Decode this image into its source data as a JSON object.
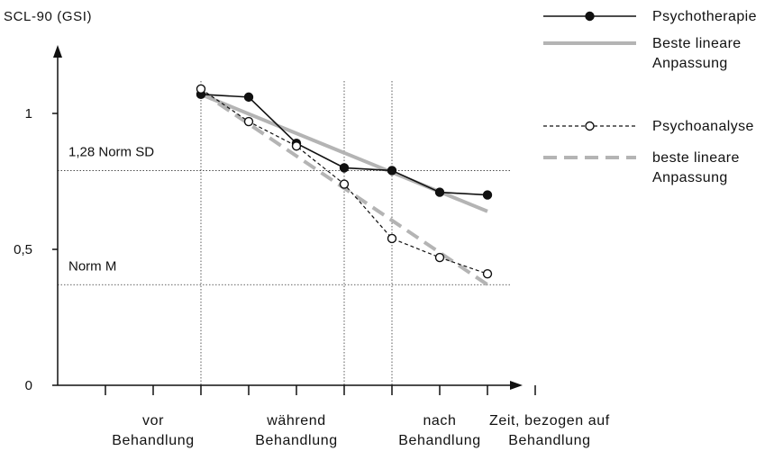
{
  "chart_data": {
    "type": "line",
    "ylabel": "SCL-90 (GSI)",
    "yticks": [
      {
        "value": 0,
        "label": "0"
      },
      {
        "value": 0.5,
        "label": "0,5"
      },
      {
        "value": 1,
        "label": "1"
      }
    ],
    "ylim": [
      0,
      1.26
    ],
    "x_positions": [
      1,
      2,
      3,
      4,
      5,
      6,
      7,
      8,
      9,
      10
    ],
    "x_phase_labels": [
      {
        "line1": "vor",
        "line2": "Behandlung",
        "x": 2
      },
      {
        "line1": "während",
        "line2": "Behandlung",
        "x": 5
      },
      {
        "line1": "nach",
        "line2": "Behandlung",
        "x": 8
      },
      {
        "line1": "Zeit, bezogen auf",
        "line2": "Behandlung",
        "x": 10.3
      }
    ],
    "reference_lines": [
      {
        "label": "1,28 Norm SD",
        "value": 0.79
      },
      {
        "label": "Norm M",
        "value": 0.37
      }
    ],
    "phase_dividers": [
      3,
      6,
      7
    ],
    "series": [
      {
        "name": "Psychotherapie",
        "marker": "filled",
        "dash": false,
        "color": "#111111",
        "x": [
          3,
          4,
          5,
          6,
          7,
          8,
          9
        ],
        "y": [
          1.07,
          1.06,
          0.89,
          0.8,
          0.79,
          0.71,
          0.7
        ]
      },
      {
        "name": "Psychoanalyse",
        "marker": "open",
        "dash": true,
        "color": "#111111",
        "x": [
          3,
          4,
          5,
          6,
          7,
          8,
          9
        ],
        "y": [
          1.09,
          0.97,
          0.88,
          0.74,
          0.54,
          0.47,
          0.41
        ]
      }
    ],
    "fits": [
      {
        "name": "Beste lineare Anpassung",
        "x": [
          3,
          9
        ],
        "y": [
          1.07,
          0.64
        ],
        "dash": false,
        "color": "#b4b4b4"
      },
      {
        "name": "beste lineare Anpassung",
        "x": [
          3,
          9
        ],
        "y": [
          1.08,
          0.37
        ],
        "dash": true,
        "color": "#b4b4b4"
      }
    ],
    "legend": {
      "placement": "top-right",
      "entries": [
        {
          "key": "series.0",
          "line1": "Psychotherapie",
          "line2": ""
        },
        {
          "key": "fits.0",
          "line1": "Beste lineare",
          "line2": "Anpassung"
        },
        {
          "key": "series.1",
          "line1": "Psychoanalyse",
          "line2": ""
        },
        {
          "key": "fits.1",
          "line1": "beste lineare",
          "line2": "Anpassung"
        }
      ]
    }
  }
}
